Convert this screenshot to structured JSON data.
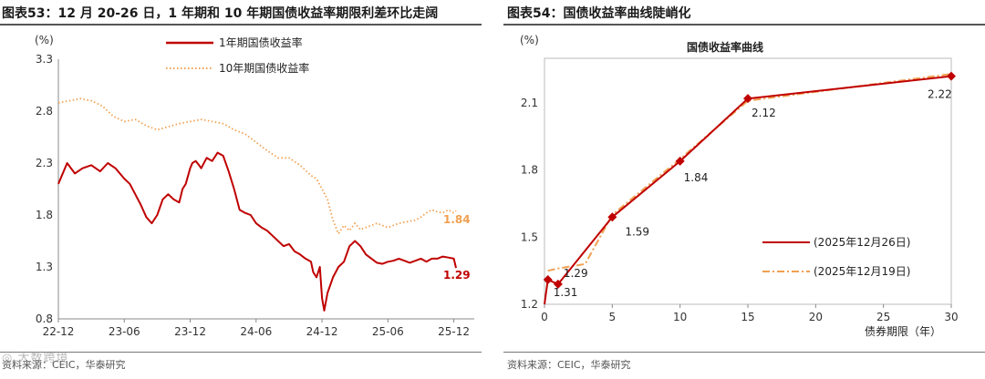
{
  "left": {
    "title": "图表53：12 月 20-26 日，1 年期和 10 年期国债收益率期限利差环比走阔",
    "source": "资料来源：CEIC，华泰研究",
    "chart_data": {
      "type": "line",
      "title": "",
      "ylabel": "(%)",
      "ylim": [
        0.8,
        3.3
      ],
      "yticks": [
        "3.3",
        "2.8",
        "2.3",
        "1.8",
        "1.3",
        "0.8"
      ],
      "yticks_num": [
        3.3,
        2.8,
        2.3,
        1.8,
        1.3,
        0.8
      ],
      "xticks": [
        "22-12",
        "23-06",
        "23-12",
        "24-06",
        "24-12",
        "25-06",
        "25-12"
      ],
      "series": [
        {
          "name": "1年期国债收益率",
          "color": "#c00000",
          "style": "solid",
          "end_label": "1.29",
          "x": [
            0,
            0.8,
            1.5,
            2.2,
            3,
            3.8,
            4.5,
            5.2,
            6,
            6.5,
            7,
            7.5,
            8,
            8.5,
            9,
            9.5,
            10,
            10.5,
            11,
            11.3,
            11.6,
            12,
            12.2,
            12.5,
            12.8,
            13,
            13.5,
            14,
            14.5,
            15,
            15.5,
            16,
            16.5,
            17,
            17.5,
            18,
            18.5,
            19,
            19.5,
            20,
            20.5,
            21,
            21.5,
            22,
            22.5,
            23,
            23.2,
            23.5,
            23.8,
            24,
            24.2,
            24.5,
            25,
            25.5,
            26,
            26.5,
            27,
            27.5,
            28,
            28.5,
            29,
            29.5,
            30,
            30.5,
            31,
            31.5,
            32,
            32.5,
            33,
            33.5,
            34,
            34.5,
            35,
            35.5,
            36,
            36.2
          ],
          "values": [
            2.1,
            2.3,
            2.2,
            2.25,
            2.28,
            2.22,
            2.3,
            2.25,
            2.15,
            2.1,
            2.0,
            1.9,
            1.78,
            1.72,
            1.8,
            1.95,
            2.0,
            1.95,
            1.92,
            2.05,
            2.1,
            2.25,
            2.3,
            2.32,
            2.28,
            2.25,
            2.35,
            2.32,
            2.4,
            2.37,
            2.22,
            2.05,
            1.85,
            1.82,
            1.8,
            1.72,
            1.68,
            1.65,
            1.6,
            1.55,
            1.5,
            1.52,
            1.45,
            1.42,
            1.38,
            1.35,
            1.25,
            1.2,
            1.3,
            1.0,
            0.88,
            1.05,
            1.2,
            1.3,
            1.35,
            1.5,
            1.55,
            1.5,
            1.42,
            1.38,
            1.34,
            1.33,
            1.35,
            1.36,
            1.38,
            1.36,
            1.34,
            1.36,
            1.38,
            1.35,
            1.38,
            1.38,
            1.4,
            1.39,
            1.38,
            1.29
          ]
        },
        {
          "name": "10年期国债收益率",
          "color": "#f0a050",
          "style": "dotted",
          "end_label": "1.84",
          "x": [
            0,
            1,
            2,
            3,
            4,
            5,
            6,
            7,
            8,
            9,
            10,
            11,
            12,
            13,
            14,
            15,
            16,
            17,
            18,
            19,
            20,
            21,
            22,
            23,
            23.5,
            24,
            24.5,
            25,
            25.5,
            26,
            26.5,
            27,
            27.5,
            28,
            29,
            30,
            31,
            32,
            32.5,
            33,
            33.5,
            34,
            34.5,
            35,
            35.5,
            36,
            36.2
          ],
          "values": [
            2.88,
            2.9,
            2.92,
            2.9,
            2.85,
            2.75,
            2.7,
            2.72,
            2.66,
            2.62,
            2.65,
            2.68,
            2.7,
            2.72,
            2.7,
            2.68,
            2.62,
            2.58,
            2.5,
            2.42,
            2.35,
            2.35,
            2.28,
            2.18,
            2.15,
            2.05,
            1.95,
            1.75,
            1.62,
            1.7,
            1.65,
            1.72,
            1.66,
            1.68,
            1.72,
            1.68,
            1.72,
            1.74,
            1.75,
            1.78,
            1.82,
            1.85,
            1.83,
            1.82,
            1.85,
            1.82,
            1.84
          ]
        }
      ]
    }
  },
  "right": {
    "title": "图表54：国债收益率曲线陡峭化",
    "source": "资料来源：CEIC，华泰研究",
    "chart_data": {
      "type": "line",
      "title": "国债收益率曲线",
      "ylabel": "(%)",
      "xlabel": "债券期限（年）",
      "ylim": [
        1.2,
        2.3
      ],
      "xlim": [
        0,
        30
      ],
      "yticks": [
        "2.1",
        "1.8",
        "1.5",
        "1.2"
      ],
      "yticks_num": [
        2.1,
        1.8,
        1.5,
        1.2
      ],
      "xticks": [
        "0",
        "5",
        "10",
        "15",
        "20",
        "25",
        "30"
      ],
      "xticks_num": [
        0,
        5,
        10,
        15,
        20,
        25,
        30
      ],
      "series": [
        {
          "name": "(2025年12月26日)",
          "color": "#c00000",
          "style": "solid",
          "x": [
            0.25,
            1,
            5,
            10,
            15,
            30
          ],
          "values": [
            1.31,
            1.29,
            1.59,
            1.84,
            2.12,
            2.22
          ],
          "labels": [
            "1.31",
            "1.29",
            "1.59",
            "1.84",
            "2.12",
            "2.22"
          ]
        },
        {
          "name": "(2025年12月19日)",
          "color": "#f0a050",
          "style": "dashdot",
          "x": [
            0.25,
            1,
            3,
            5,
            10,
            15,
            30
          ],
          "values": [
            1.35,
            1.36,
            1.38,
            1.6,
            1.85,
            2.11,
            2.23
          ]
        }
      ]
    }
  }
}
